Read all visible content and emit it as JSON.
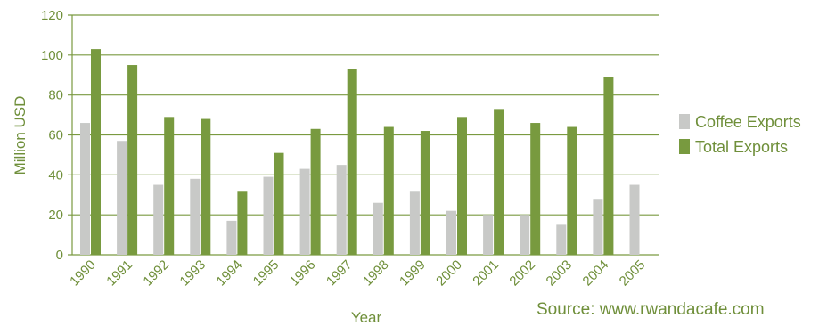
{
  "chart_data": {
    "type": "bar",
    "categories": [
      "1990",
      "1991",
      "1992",
      "1993",
      "1994",
      "1995",
      "1996",
      "1997",
      "1998",
      "1999",
      "2000",
      "2001",
      "2002",
      "2003",
      "2004",
      "2005"
    ],
    "series": [
      {
        "name": "Coffee Exports",
        "color": "#c8c9c7",
        "values": [
          66,
          57,
          35,
          38,
          17,
          39,
          43,
          45,
          26,
          32,
          22,
          20,
          20,
          15,
          28,
          35
        ]
      },
      {
        "name": "Total Exports",
        "color": "#789a3f",
        "values": [
          103,
          95,
          69,
          68,
          32,
          51,
          63,
          93,
          64,
          62,
          69,
          73,
          66,
          64,
          89,
          null
        ]
      }
    ],
    "xlabel": "Year",
    "ylabel": "Million USD",
    "ylim": [
      0,
      120
    ],
    "yticks": [
      "0",
      "20",
      "40",
      "60",
      "80",
      "100",
      "120"
    ],
    "grid": true,
    "legend": "right"
  },
  "source": "Source: www.rwandacafe.com",
  "colors": {
    "text": "#6f8f3a",
    "grid": "#7a9a40"
  }
}
